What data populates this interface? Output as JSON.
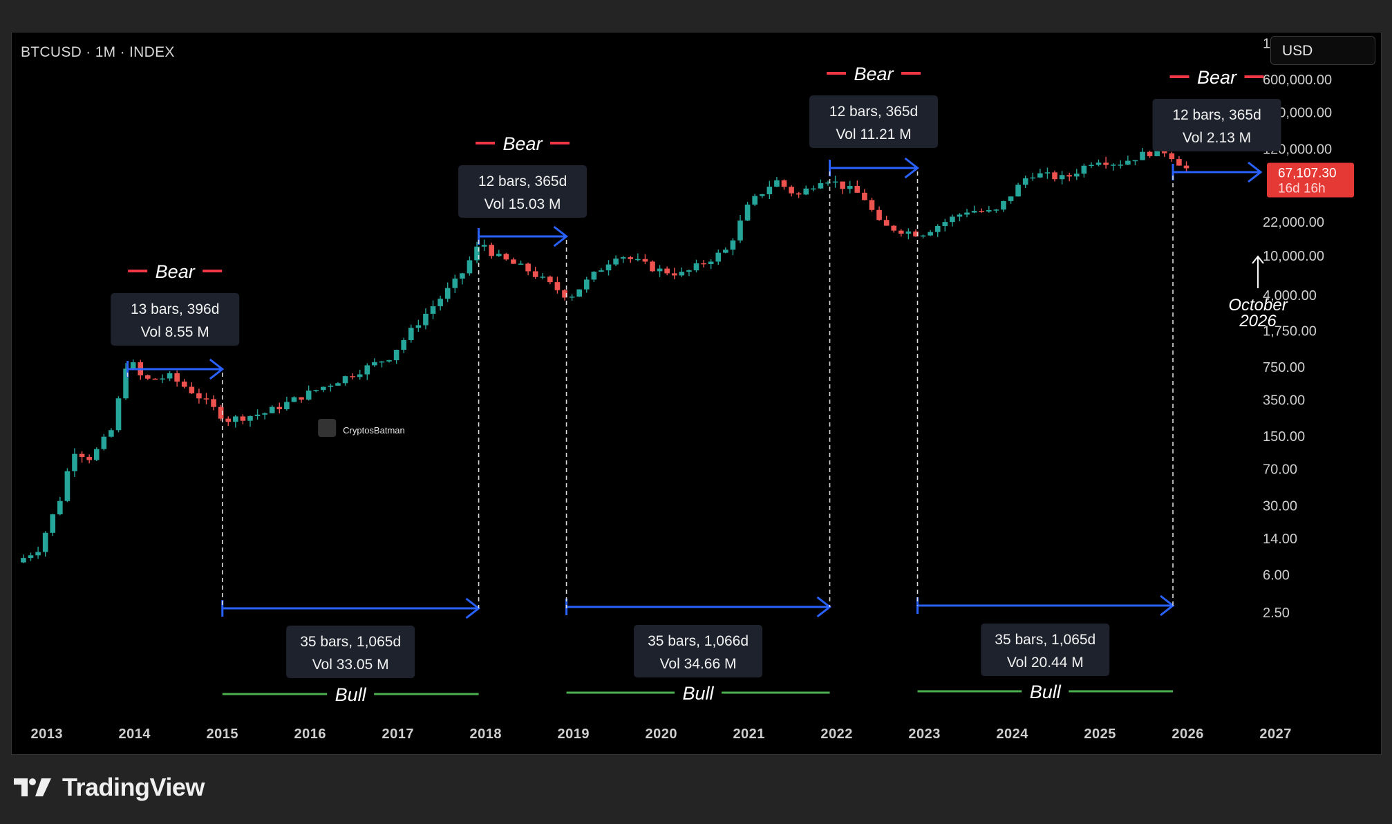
{
  "header": {
    "symbol": "BTCUSD · 1M · INDEX",
    "currency": "USD"
  },
  "footer": {
    "brand": "TradingView"
  },
  "watermark": {
    "text": "CryptosBatman"
  },
  "colors": {
    "up": "#26a69a",
    "down": "#ef5350",
    "arrow": "#2962ff",
    "bull_line": "#4caf50",
    "bear_dash": "#f23645",
    "price_tag": "#e53935",
    "label_bg": "#1e222d",
    "axis_text": "#cfcfcf"
  },
  "price_tag": {
    "price": "67,107.30",
    "countdown": "16d 16h"
  },
  "projection": {
    "line1": "October",
    "line2": "2026"
  },
  "chart_data": {
    "type": "candlestick",
    "title": "BTCUSD · 1M · INDEX",
    "y_scale": "log",
    "y_unit": "USD",
    "x_tick_labels": [
      "2013",
      "2014",
      "2015",
      "2016",
      "2017",
      "2018",
      "2019",
      "2020",
      "2021",
      "2022",
      "2023",
      "2024",
      "2025",
      "2026",
      "2027"
    ],
    "y_tick_labels": [
      "1,400,000.00",
      "600,000.00",
      "280,000.00",
      "120,000.00",
      "22,000.00",
      "10,000.00",
      "4,000.00",
      "1,750.00",
      "750.00",
      "350.00",
      "150.00",
      "70.00",
      "30.00",
      "14.00",
      "6.00",
      "2.50"
    ],
    "y_ticks": [
      {
        "label": "1,400,000.00",
        "value": 1400000
      },
      {
        "label": "600,000.00",
        "value": 600000
      },
      {
        "label": "280,000.00",
        "value": 280000
      },
      {
        "label": "120,000.00",
        "value": 120000
      },
      {
        "label": "22,000.00",
        "value": 22000
      },
      {
        "label": "10,000.00",
        "value": 10000
      },
      {
        "label": "4,000.00",
        "value": 4000
      },
      {
        "label": "1,750.00",
        "value": 1750
      },
      {
        "label": "750.00",
        "value": 750
      },
      {
        "label": "350.00",
        "value": 350
      },
      {
        "label": "150.00",
        "value": 150
      },
      {
        "label": "70.00",
        "value": 70
      },
      {
        "label": "30.00",
        "value": 30
      },
      {
        "label": "14.00",
        "value": 14
      },
      {
        "label": "6.00",
        "value": 6
      },
      {
        "label": "2.50",
        "value": 2.5
      }
    ],
    "x_range_years": [
      2012.6,
      2028.2
    ],
    "last_price": 67107.3,
    "anchors": [
      {
        "t": 2012.65,
        "p": 8
      },
      {
        "t": 2012.9,
        "p": 11
      },
      {
        "t": 2013.15,
        "p": 35
      },
      {
        "t": 2013.3,
        "p": 110
      },
      {
        "t": 2013.5,
        "p": 90
      },
      {
        "t": 2013.75,
        "p": 180
      },
      {
        "t": 2013.92,
        "p": 950
      },
      {
        "t": 2014.1,
        "p": 550
      },
      {
        "t": 2014.4,
        "p": 600
      },
      {
        "t": 2014.7,
        "p": 400
      },
      {
        "t": 2015.05,
        "p": 220
      },
      {
        "t": 2015.5,
        "p": 260
      },
      {
        "t": 2015.9,
        "p": 380
      },
      {
        "t": 2016.5,
        "p": 650
      },
      {
        "t": 2016.9,
        "p": 950
      },
      {
        "t": 2017.3,
        "p": 2500
      },
      {
        "t": 2017.7,
        "p": 6000
      },
      {
        "t": 2017.95,
        "p": 14000
      },
      {
        "t": 2018.1,
        "p": 10000
      },
      {
        "t": 2018.5,
        "p": 7000
      },
      {
        "t": 2018.95,
        "p": 3800
      },
      {
        "t": 2019.5,
        "p": 10500
      },
      {
        "t": 2019.95,
        "p": 7200
      },
      {
        "t": 2020.25,
        "p": 6500
      },
      {
        "t": 2020.75,
        "p": 11500
      },
      {
        "t": 2021.0,
        "p": 33000
      },
      {
        "t": 2021.3,
        "p": 58000
      },
      {
        "t": 2021.55,
        "p": 40000
      },
      {
        "t": 2021.85,
        "p": 62000
      },
      {
        "t": 2022.3,
        "p": 40000
      },
      {
        "t": 2022.5,
        "p": 20000
      },
      {
        "t": 2022.95,
        "p": 16500
      },
      {
        "t": 2023.5,
        "p": 29000
      },
      {
        "t": 2023.8,
        "p": 27000
      },
      {
        "t": 2024.2,
        "p": 68000
      },
      {
        "t": 2024.6,
        "p": 60000
      },
      {
        "t": 2024.95,
        "p": 95000
      },
      {
        "t": 2025.2,
        "p": 85000
      },
      {
        "t": 2025.55,
        "p": 110000
      },
      {
        "t": 2025.75,
        "p": 114000
      },
      {
        "t": 2026.05,
        "p": 67107
      }
    ],
    "annotations": {
      "bear": [
        {
          "label": "Bear",
          "stats_line1": "13 bars, 396d",
          "stats_line2": "Vol 8.55 M",
          "start": 2013.92,
          "end": 2015.0
        },
        {
          "label": "Bear",
          "stats_line1": "12 bars, 365d",
          "stats_line2": "Vol 15.03 M",
          "start": 2017.92,
          "end": 2018.92
        },
        {
          "label": "Bear",
          "stats_line1": "12 bars, 365d",
          "stats_line2": "Vol 11.21 M",
          "start": 2021.92,
          "end": 2022.92
        },
        {
          "label": "Bear",
          "stats_line1": "12 bars, 365d",
          "stats_line2": "Vol 2.13 M",
          "start": 2025.83,
          "end": 2026.83
        }
      ],
      "bull": [
        {
          "label": "Bull",
          "stats_line1": "35 bars, 1,065d",
          "stats_line2": "Vol 33.05 M",
          "start": 2015.0,
          "end": 2017.92
        },
        {
          "label": "Bull",
          "stats_line1": "35 bars, 1,066d",
          "stats_line2": "Vol 34.66 M",
          "start": 2018.92,
          "end": 2021.92
        },
        {
          "label": "Bull",
          "stats_line1": "35 bars, 1,065d",
          "stats_line2": "Vol 20.44 M",
          "start": 2022.92,
          "end": 2025.83
        }
      ]
    }
  }
}
